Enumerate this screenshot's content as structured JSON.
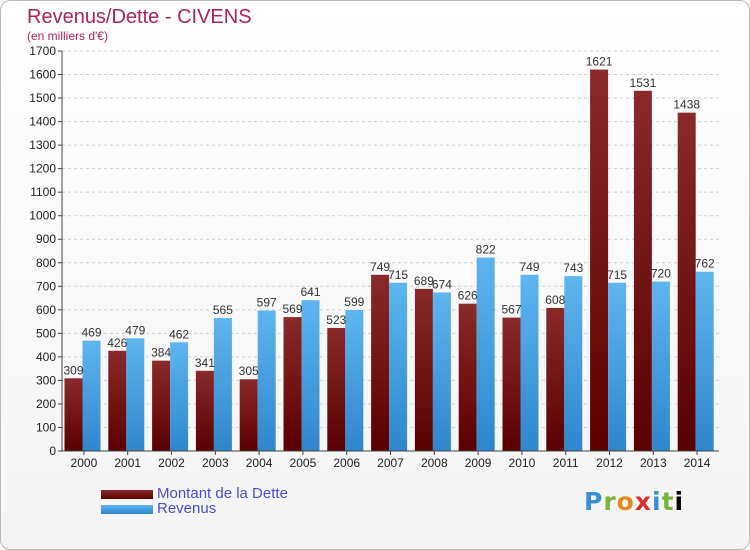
{
  "title": "Revenus/Dette - CIVENS",
  "subtitle": "(en milliers d'€)",
  "logo_text": "Proxiti",
  "colors": {
    "dette_top": "#8a2a2a",
    "dette_bottom": "#5a0000",
    "revenus_top": "#5fb5ee",
    "revenus_bottom": "#2f86cc",
    "title": "#a9245d",
    "legend_text": "#4d4dcf"
  },
  "chart_data": {
    "type": "bar",
    "categories": [
      "2000",
      "2001",
      "2002",
      "2003",
      "2004",
      "2005",
      "2006",
      "2007",
      "2008",
      "2009",
      "2010",
      "2011",
      "2012",
      "2013",
      "2014"
    ],
    "series": [
      {
        "name": "Montant de la Dette",
        "values": [
          309,
          426,
          384,
          341,
          305,
          569,
          523,
          749,
          689,
          626,
          567,
          608,
          1621,
          1531,
          1438
        ]
      },
      {
        "name": "Revenus",
        "values": [
          469,
          479,
          462,
          565,
          597,
          641,
          599,
          715,
          674,
          822,
          749,
          743,
          715,
          720,
          762
        ]
      }
    ],
    "ylim": [
      0,
      1700
    ],
    "yticks": [
      0,
      100,
      200,
      300,
      400,
      500,
      600,
      700,
      800,
      900,
      1000,
      1100,
      1200,
      1300,
      1400,
      1500,
      1600,
      1700
    ],
    "grid": true,
    "legend_position": "bottom-left"
  }
}
